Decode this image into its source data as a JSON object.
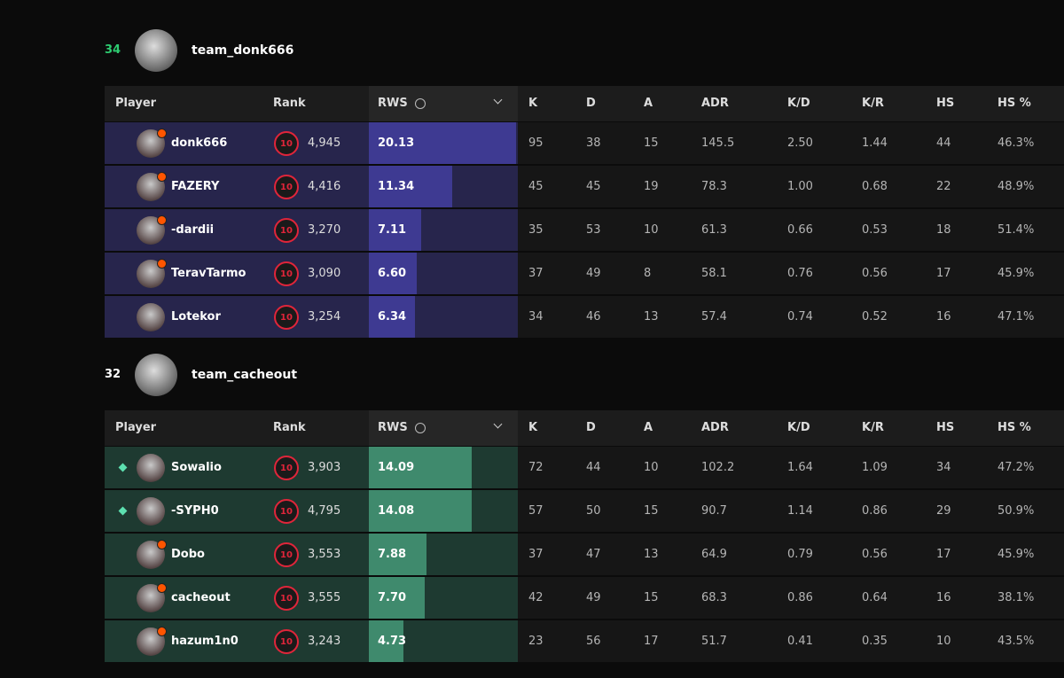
{
  "columns": [
    "Player",
    "Rank",
    "RWS",
    "K",
    "D",
    "A",
    "ADR",
    "K/D",
    "K/R",
    "HS",
    "HS %"
  ],
  "teams": [
    {
      "score": "34",
      "name": "team_donk666",
      "theme": "purple",
      "players": [
        {
          "name": "donk666",
          "badge": true,
          "party": false,
          "level": "10",
          "elo": "4,945",
          "rws": "20.13",
          "k": "95",
          "d": "38",
          "a": "15",
          "adr": "145.5",
          "kd": "2.50",
          "kr": "1.44",
          "hs": "44",
          "hs_pct": "46.3%"
        },
        {
          "name": "FAZERY",
          "badge": true,
          "party": false,
          "level": "10",
          "elo": "4,416",
          "rws": "11.34",
          "k": "45",
          "d": "45",
          "a": "19",
          "adr": "78.3",
          "kd": "1.00",
          "kr": "0.68",
          "hs": "22",
          "hs_pct": "48.9%"
        },
        {
          "name": "-dardii",
          "badge": true,
          "party": false,
          "level": "10",
          "elo": "3,270",
          "rws": "7.11",
          "k": "35",
          "d": "53",
          "a": "10",
          "adr": "61.3",
          "kd": "0.66",
          "kr": "0.53",
          "hs": "18",
          "hs_pct": "51.4%"
        },
        {
          "name": "TeravTarmo",
          "badge": true,
          "party": false,
          "level": "10",
          "elo": "3,090",
          "rws": "6.60",
          "k": "37",
          "d": "49",
          "a": "8",
          "adr": "58.1",
          "kd": "0.76",
          "kr": "0.56",
          "hs": "17",
          "hs_pct": "45.9%"
        },
        {
          "name": "Lotekor",
          "badge": false,
          "party": false,
          "level": "10",
          "elo": "3,254",
          "rws": "6.34",
          "k": "34",
          "d": "46",
          "a": "13",
          "adr": "57.4",
          "kd": "0.74",
          "kr": "0.52",
          "hs": "16",
          "hs_pct": "47.1%"
        }
      ]
    },
    {
      "score": "32",
      "name": "team_cacheout",
      "theme": "green",
      "players": [
        {
          "name": "Sowalio",
          "badge": false,
          "party": true,
          "level": "10",
          "elo": "3,903",
          "rws": "14.09",
          "k": "72",
          "d": "44",
          "a": "10",
          "adr": "102.2",
          "kd": "1.64",
          "kr": "1.09",
          "hs": "34",
          "hs_pct": "47.2%"
        },
        {
          "name": "-SYPH0",
          "badge": false,
          "party": true,
          "level": "10",
          "elo": "4,795",
          "rws": "14.08",
          "k": "57",
          "d": "50",
          "a": "15",
          "adr": "90.7",
          "kd": "1.14",
          "kr": "0.86",
          "hs": "29",
          "hs_pct": "50.9%"
        },
        {
          "name": "Dobo",
          "badge": true,
          "party": false,
          "level": "10",
          "elo": "3,553",
          "rws": "7.88",
          "k": "37",
          "d": "47",
          "a": "13",
          "adr": "64.9",
          "kd": "0.79",
          "kr": "0.56",
          "hs": "17",
          "hs_pct": "45.9%"
        },
        {
          "name": "cacheout",
          "badge": true,
          "party": false,
          "level": "10",
          "elo": "3,555",
          "rws": "7.70",
          "k": "42",
          "d": "49",
          "a": "15",
          "adr": "68.3",
          "kd": "0.86",
          "kr": "0.64",
          "hs": "16",
          "hs_pct": "38.1%"
        },
        {
          "name": "hazum1n0",
          "badge": true,
          "party": false,
          "level": "10",
          "elo": "3,243",
          "rws": "4.73",
          "k": "23",
          "d": "56",
          "a": "17",
          "adr": "51.7",
          "kd": "0.41",
          "kr": "0.35",
          "hs": "10",
          "hs_pct": "43.5%"
        }
      ]
    }
  ]
}
